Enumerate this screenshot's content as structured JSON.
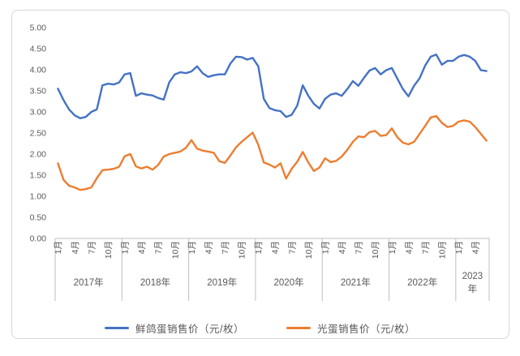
{
  "chart_data": {
    "type": "line",
    "title": "",
    "period": {
      "from": "2017-01",
      "to": "2023-06",
      "frequency": "monthly"
    },
    "y_axis": {
      "min": 0,
      "max": 5,
      "step": 0.5,
      "tick_labels": [
        "0.00",
        "0.50",
        "1.00",
        "1.50",
        "2.00",
        "2.50",
        "3.00",
        "3.50",
        "4.00",
        "4.50",
        "5.00"
      ],
      "gridlines": false
    },
    "x_axis": {
      "years": [
        {
          "label": "2017年",
          "lines": [
            "2017年"
          ],
          "months": 12,
          "ticks": [
            {
              "label": "1月",
              "month": 1
            },
            {
              "label": "4月",
              "month": 4
            },
            {
              "label": "7月",
              "month": 7
            },
            {
              "label": "10月",
              "month": 10
            }
          ]
        },
        {
          "label": "2018年",
          "lines": [
            "2018年"
          ],
          "months": 12,
          "ticks": [
            {
              "label": "1月",
              "month": 1
            },
            {
              "label": "4月",
              "month": 4
            },
            {
              "label": "7月",
              "month": 7
            },
            {
              "label": "10月",
              "month": 10
            }
          ]
        },
        {
          "label": "2019年",
          "lines": [
            "2019年"
          ],
          "months": 12,
          "ticks": [
            {
              "label": "1月",
              "month": 1
            },
            {
              "label": "4月",
              "month": 4
            },
            {
              "label": "7月",
              "month": 7
            },
            {
              "label": "10月",
              "month": 10
            }
          ]
        },
        {
          "label": "2020年",
          "lines": [
            "2020年"
          ],
          "months": 12,
          "ticks": [
            {
              "label": "1月",
              "month": 1
            },
            {
              "label": "4月",
              "month": 4
            },
            {
              "label": "7月",
              "month": 7
            },
            {
              "label": "10月",
              "month": 10
            }
          ]
        },
        {
          "label": "2021年",
          "lines": [
            "2021年"
          ],
          "months": 12,
          "ticks": [
            {
              "label": "1月",
              "month": 1
            },
            {
              "label": "4月",
              "month": 4
            },
            {
              "label": "7月",
              "month": 7
            },
            {
              "label": "10月",
              "month": 10
            }
          ]
        },
        {
          "label": "2022年",
          "lines": [
            "2022年"
          ],
          "months": 12,
          "ticks": [
            {
              "label": "1月",
              "month": 1
            },
            {
              "label": "4月",
              "month": 4
            },
            {
              "label": "7月",
              "month": 7
            },
            {
              "label": "10月",
              "month": 10
            }
          ]
        },
        {
          "label": "2023年",
          "lines": [
            "2023",
            "年"
          ],
          "months": 6,
          "ticks": [
            {
              "label": "1月",
              "month": 1
            },
            {
              "label": "4月",
              "month": 4
            }
          ]
        }
      ]
    },
    "legend_position": "bottom",
    "series": [
      {
        "name": "鲜鸽蛋销售价（元/枚）",
        "color": "#4472C4",
        "values": [
          3.55,
          3.28,
          3.06,
          2.92,
          2.85,
          2.88,
          3.0,
          3.06,
          3.63,
          3.67,
          3.65,
          3.7,
          3.89,
          3.92,
          3.38,
          3.44,
          3.41,
          3.39,
          3.33,
          3.29,
          3.7,
          3.89,
          3.94,
          3.92,
          3.96,
          4.08,
          3.92,
          3.83,
          3.87,
          3.89,
          3.89,
          4.15,
          4.31,
          4.3,
          4.24,
          4.28,
          4.08,
          3.31,
          3.09,
          3.04,
          3.02,
          2.88,
          2.93,
          3.15,
          3.63,
          3.38,
          3.19,
          3.08,
          3.31,
          3.41,
          3.44,
          3.38,
          3.54,
          3.73,
          3.62,
          3.81,
          3.98,
          4.04,
          3.89,
          3.99,
          4.04,
          3.79,
          3.54,
          3.37,
          3.62,
          3.8,
          4.1,
          4.31,
          4.36,
          4.12,
          4.21,
          4.21,
          4.31,
          4.35,
          4.31,
          4.21,
          3.99,
          3.97
        ]
      },
      {
        "name": "光蛋销售价（元/枚）",
        "color": "#ED7D31",
        "values": [
          1.78,
          1.39,
          1.25,
          1.21,
          1.15,
          1.17,
          1.21,
          1.43,
          1.62,
          1.63,
          1.65,
          1.7,
          1.95,
          2.0,
          1.71,
          1.66,
          1.7,
          1.63,
          1.74,
          1.94,
          2.0,
          2.03,
          2.06,
          2.15,
          2.33,
          2.13,
          2.08,
          2.06,
          2.03,
          1.83,
          1.79,
          1.97,
          2.16,
          2.29,
          2.4,
          2.51,
          2.22,
          1.8,
          1.75,
          1.68,
          1.78,
          1.42,
          1.65,
          1.82,
          2.05,
          1.8,
          1.6,
          1.68,
          1.9,
          1.81,
          1.84,
          1.94,
          2.1,
          2.29,
          2.42,
          2.4,
          2.52,
          2.55,
          2.43,
          2.45,
          2.61,
          2.4,
          2.27,
          2.23,
          2.29,
          2.48,
          2.67,
          2.87,
          2.9,
          2.74,
          2.64,
          2.67,
          2.77,
          2.8,
          2.77,
          2.64,
          2.48,
          2.32
        ]
      }
    ]
  },
  "colors": {
    "axis_text": "#595959",
    "axis_line": "#bfbfbf",
    "frame_border": "#d9d9d9"
  }
}
